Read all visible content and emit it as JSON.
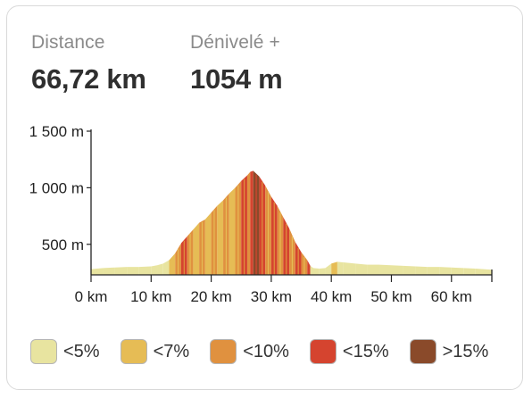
{
  "stats": {
    "distance": {
      "label": "Distance",
      "value": "66,72 km"
    },
    "elevation": {
      "label": "Dénivelé +",
      "value": "1054 m"
    }
  },
  "legend": [
    {
      "label": "<5%",
      "color": "#e8e4a0"
    },
    {
      "label": "<7%",
      "color": "#e6bc55"
    },
    {
      "label": "<10%",
      "color": "#e0913f"
    },
    {
      "label": "<15%",
      "color": "#d5442f"
    },
    {
      "label": ">15%",
      "color": "#8a4a2a"
    }
  ],
  "chart_data": {
    "type": "area",
    "xlabel": "",
    "ylabel": "",
    "xlim": [
      0,
      66.72
    ],
    "ylim": [
      230,
      1500
    ],
    "x_ticks": [
      0,
      10,
      20,
      30,
      40,
      50,
      60
    ],
    "x_tick_labels": [
      "0 km",
      "10 km",
      "20 km",
      "30 km",
      "40 km",
      "50 km",
      "60 km"
    ],
    "y_ticks": [
      500,
      1000,
      1500
    ],
    "y_tick_labels": [
      "500 m",
      "1 000 m",
      "1 500 m"
    ],
    "series": [
      {
        "x": [
          0,
          2,
          4,
          6,
          8,
          10,
          11,
          12,
          13,
          14,
          15,
          16,
          17,
          18,
          19,
          20,
          21,
          22,
          23,
          24,
          25,
          26,
          26.5,
          27,
          28,
          29,
          30,
          31,
          32,
          33,
          34,
          35,
          36,
          36.5,
          37,
          38,
          39,
          40,
          41,
          42,
          44,
          46,
          48,
          50,
          52,
          54,
          56,
          58,
          60,
          62,
          64,
          66.72
        ],
        "y": [
          280,
          290,
          295,
          300,
          300,
          305,
          315,
          330,
          360,
          420,
          510,
          570,
          630,
          690,
          720,
          780,
          840,
          890,
          950,
          1000,
          1060,
          1110,
          1140,
          1150,
          1100,
          1020,
          920,
          840,
          740,
          640,
          520,
          430,
          360,
          310,
          290,
          285,
          290,
          330,
          345,
          340,
          330,
          320,
          320,
          315,
          310,
          305,
          300,
          300,
          295,
          290,
          285,
          275
        ],
        "grade_class": [
          0,
          0,
          0,
          0,
          0,
          0,
          0,
          0,
          1,
          2,
          3,
          2,
          1,
          2,
          1,
          2,
          1,
          2,
          1,
          2,
          3,
          2,
          3,
          4,
          3,
          2,
          3,
          2,
          3,
          2,
          3,
          2,
          3,
          0,
          0,
          0,
          0,
          1,
          0,
          0,
          0,
          0,
          0,
          0,
          0,
          0,
          0,
          0,
          0,
          0,
          0,
          0
        ]
      }
    ]
  }
}
